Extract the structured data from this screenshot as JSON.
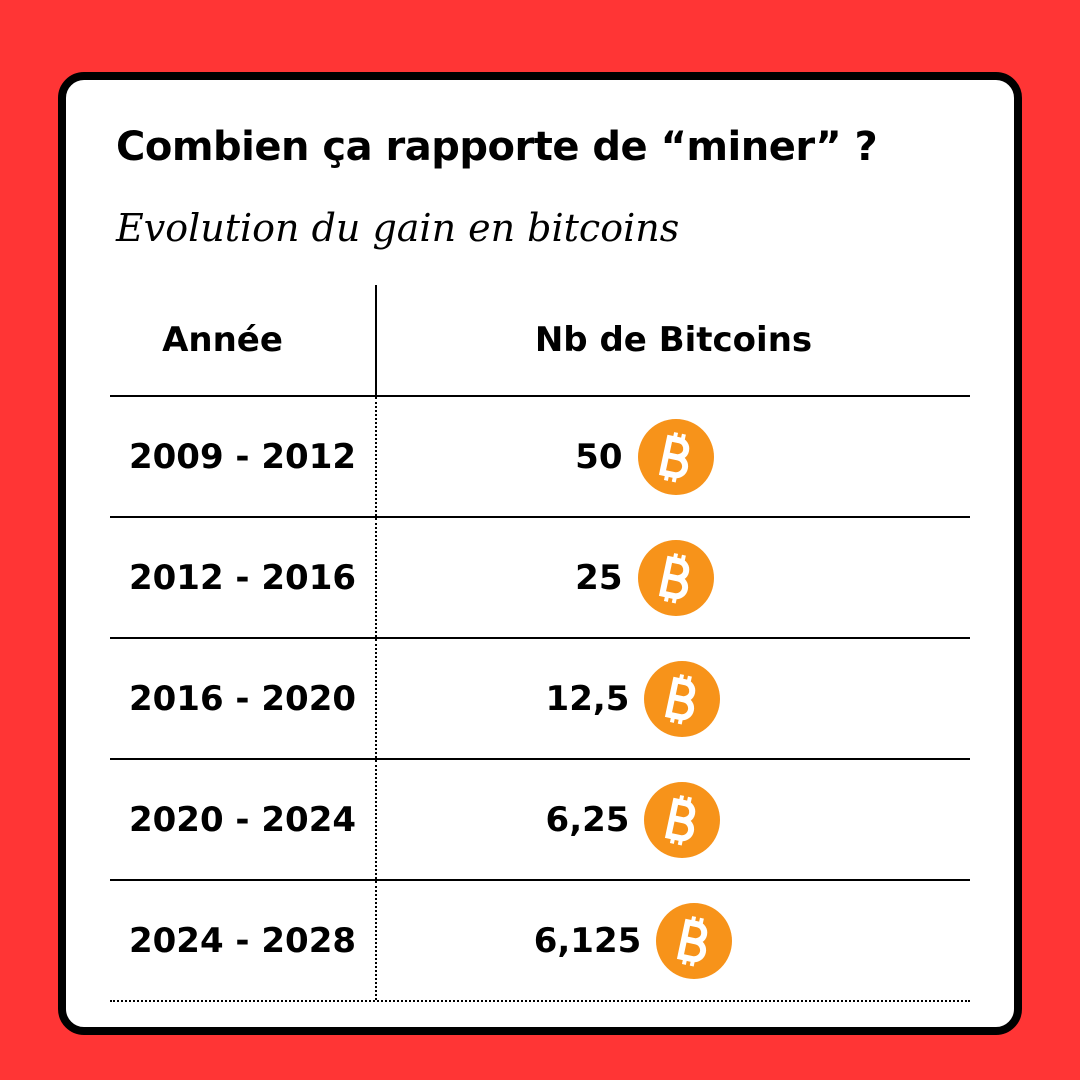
{
  "header": {
    "title": "Combien ça rapporte de “miner” ?",
    "subtitle": "Evolution du gain en bitcoins"
  },
  "table": {
    "columns": [
      "Année",
      "Nb de Bitcoins"
    ],
    "rows": [
      [
        "2009 - 2012",
        "50"
      ],
      [
        "2012 - 2016",
        "25"
      ],
      [
        "2016 - 2020",
        "12,5"
      ],
      [
        "2020 - 2024",
        "6,25"
      ],
      [
        "2024 - 2028",
        "6,125"
      ]
    ]
  }
}
